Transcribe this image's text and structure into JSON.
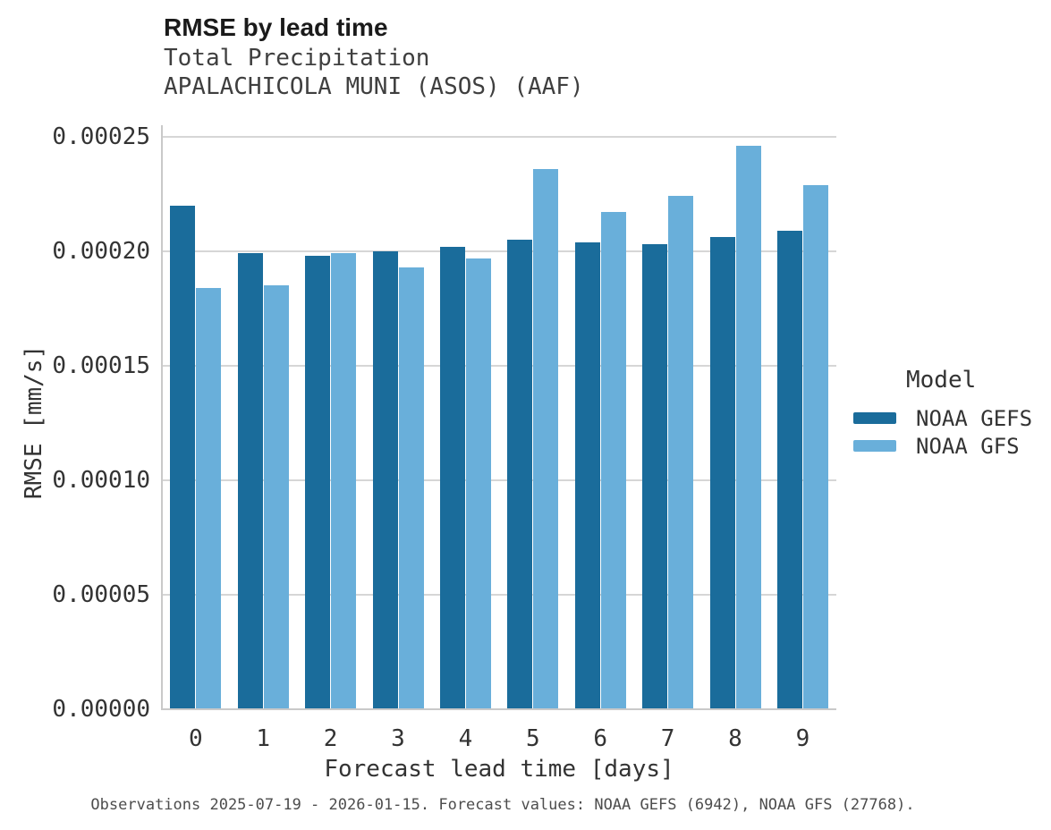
{
  "figure": {
    "title": "RMSE by lead time",
    "subtitle_line1": "Total Precipitation",
    "subtitle_line2": "APALACHICOLA MUNI (ASOS) (AAF)",
    "caption": "Observations 2025-07-19 - 2026-01-15. Forecast values: NOAA GEFS (6942), NOAA GFS (27768)."
  },
  "legend": {
    "title": "Model",
    "entries": [
      {
        "label": "NOAA GEFS",
        "color": "#1a6c9b"
      },
      {
        "label": "NOAA GFS",
        "color": "#69afda"
      }
    ]
  },
  "chart_data": {
    "type": "bar",
    "title": "RMSE by lead time",
    "subtitle": [
      "Total Precipitation",
      "APALACHICOLA MUNI (ASOS) (AAF)"
    ],
    "xlabel": "Forecast lead time [days]",
    "ylabel": "RMSE [mm/s]",
    "categories": [
      "0",
      "1",
      "2",
      "3",
      "4",
      "5",
      "6",
      "7",
      "8",
      "9"
    ],
    "series": [
      {
        "name": "NOAA GEFS",
        "color": "#1a6c9b",
        "values": [
          0.00022,
          0.000199,
          0.000198,
          0.0002,
          0.000202,
          0.000205,
          0.000204,
          0.000203,
          0.000206,
          0.000209
        ]
      },
      {
        "name": "NOAA GFS",
        "color": "#69afda",
        "values": [
          0.000184,
          0.000185,
          0.000199,
          0.000193,
          0.000197,
          0.000236,
          0.000217,
          0.000224,
          0.000246,
          0.000229
        ]
      }
    ],
    "ylim": [
      0,
      0.000255
    ],
    "yticks": [
      {
        "value": 0.0,
        "label": "0.00000"
      },
      {
        "value": 5e-05,
        "label": "0.00005"
      },
      {
        "value": 0.0001,
        "label": "0.00010"
      },
      {
        "value": 0.00015,
        "label": "0.00015"
      },
      {
        "value": 0.0002,
        "label": "0.00020"
      },
      {
        "value": 0.00025,
        "label": "0.00025"
      }
    ],
    "grid": "horizontal",
    "legend_position": "right",
    "legend_title": "Model"
  },
  "colors": {
    "grid": "#d6d6d6",
    "spine": "#c9c9c9",
    "background": "#ffffff"
  }
}
